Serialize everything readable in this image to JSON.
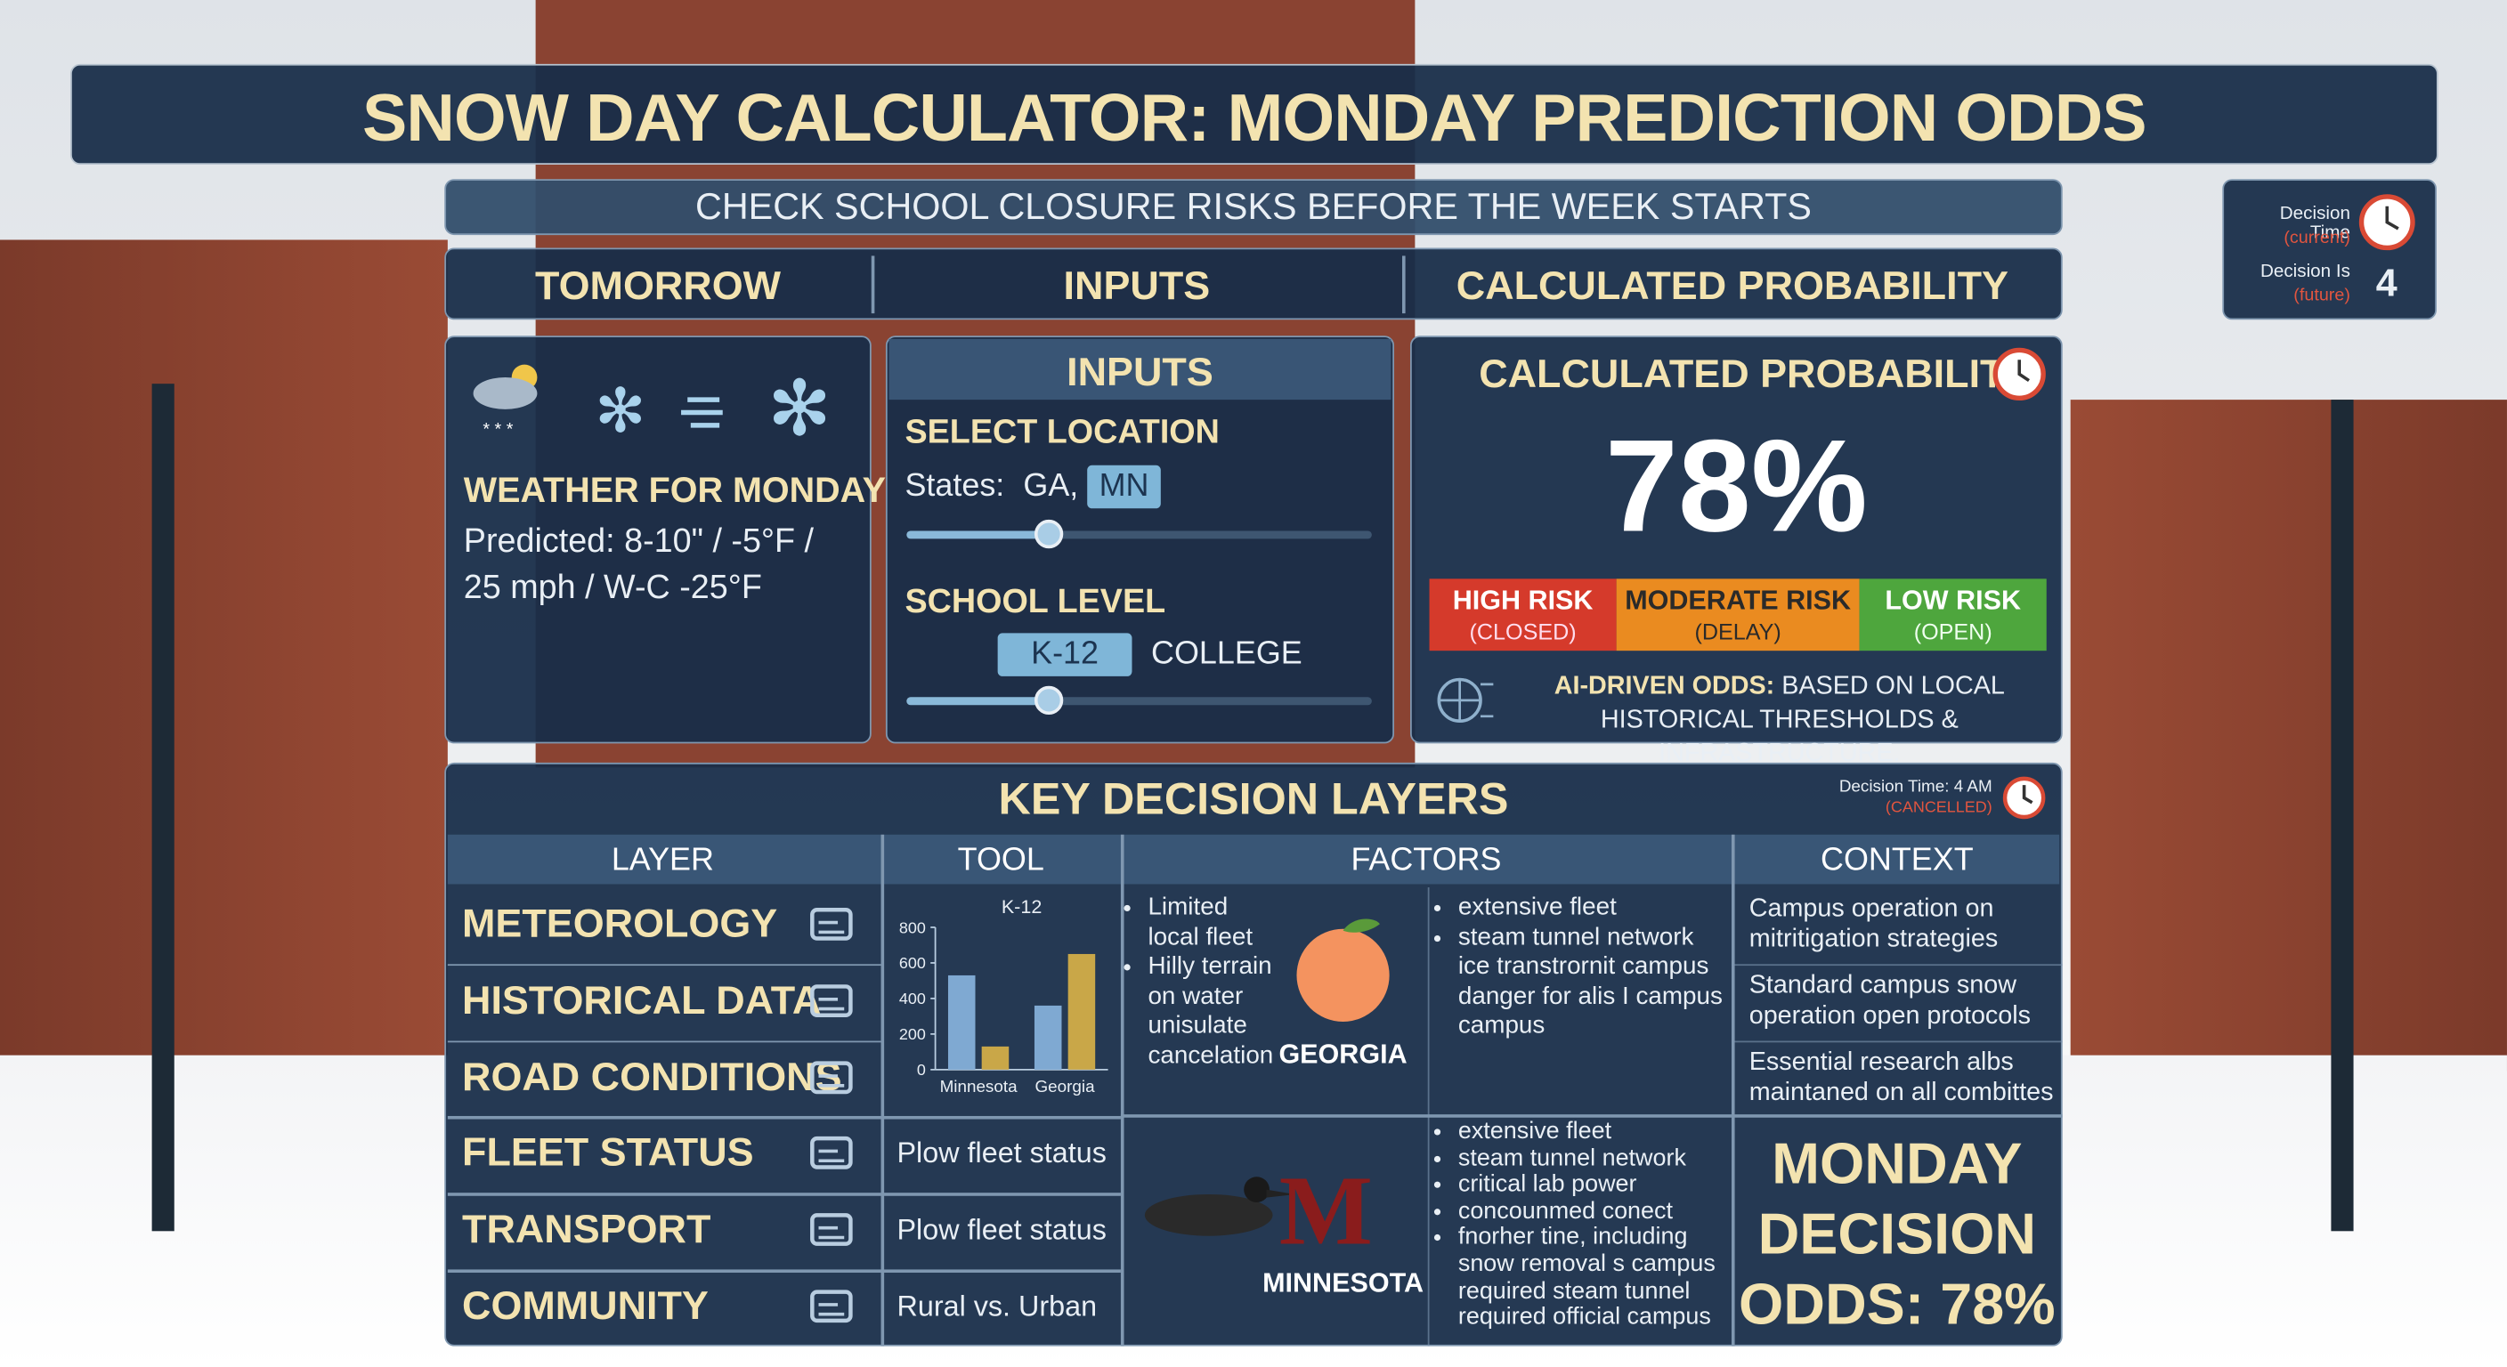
{
  "title": "SNOW DAY CALCULATOR: MONDAY PREDICTION ODDS",
  "subtitle": "CHECK SCHOOL CLOSURE RISKS BEFORE THE WEEK STARTS",
  "decision_badge": {
    "time_label": "Decision Time",
    "time_note": "(current)",
    "is_label": "Decision Is",
    "is_note": "(future)",
    "is_value": "4"
  },
  "tabs": [
    "TOMORROW",
    "INPUTS",
    "CALCULATED PROBABILITY"
  ],
  "weather": {
    "heading": "WEATHER FOR MONDAY",
    "text": "Predicted: 8-10\" / -5°F / 25 mph / W-C -25°F"
  },
  "inputs": {
    "title": "INPUTS",
    "location_label": "SELECT LOCATION",
    "states_label": "States:",
    "states": [
      "GA,",
      "MN"
    ],
    "level_label": "SCHOOL LEVEL",
    "levels": [
      "K-12",
      "COLLEGE"
    ]
  },
  "probability": {
    "title": "CALCULATED PROBABILITY",
    "value": "78%",
    "risks": [
      {
        "label": "HIGH RISK",
        "note": "(CLOSED)"
      },
      {
        "label": "MODERATE RISK",
        "note": "(DELAY)"
      },
      {
        "label": "LOW RISK",
        "note": "(OPEN)"
      }
    ],
    "ai_label": "AI-DRIVEN ODDS:",
    "ai_text": "BASED ON LOCAL HISTORICAL THRESHOLDS & INFRASTRUCTURE."
  },
  "layers": {
    "title": "KEY DECISION LAYERS",
    "time_label": "Decision Time: 4 AM",
    "time_note": "(CANCELLED)",
    "headers": [
      "LAYER",
      "TOOL",
      "FACTORS",
      "CONTEXT"
    ],
    "rows": [
      "METEOROLOGY",
      "HISTORICAL DATA",
      "ROAD CONDITIONS",
      "FLEET STATUS",
      "TRANSPORT",
      "COMMUNITY"
    ],
    "tools": [
      "Plow fleet status",
      "Plow fleet status",
      "Rural vs. Urban"
    ],
    "tool_chart": {
      "type": "bar",
      "title": "K-12",
      "categories": [
        "Minnesota",
        "Georgia"
      ],
      "series": [
        {
          "color": "#7fa9d2",
          "values": [
            530,
            360
          ]
        },
        {
          "color": "#c9a748",
          "values": [
            130,
            650
          ]
        }
      ],
      "ylim": [
        0,
        800
      ],
      "yticks": [
        0,
        200,
        400,
        600,
        800
      ]
    },
    "georgia": {
      "label": "GEORGIA",
      "factors_left": [
        "Limited local fleet",
        "Hilly terrain on water unisulate cancelation"
      ],
      "factors_right": [
        "extensive fleet",
        "steam tunnel network ice transtrornit campus danger for alis I campus campus"
      ]
    },
    "minnesota": {
      "label": "MINNESOTA",
      "factors": [
        "extensive fleet",
        "steam tunnel network",
        "critical lab power",
        "concounmed conect",
        "fnorher tine, including snow removal s campus required steam tunnel required official campus"
      ]
    },
    "context": [
      "Campus operation on mitritigation strategies",
      "Standard campus snow operation open protocols",
      "Essential research albs maintaned on all combittes"
    ],
    "summary": "MONDAY DECISION ODDS: 78%"
  }
}
